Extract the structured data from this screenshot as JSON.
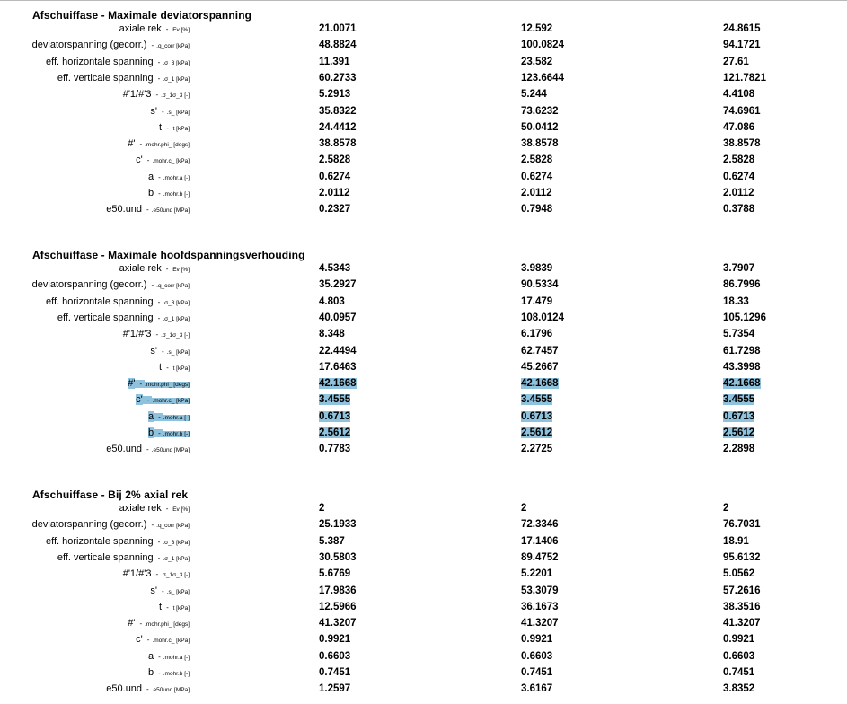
{
  "sections": [
    {
      "title": "Afschuiffase - Maximale deviatorspanning",
      "rows": [
        {
          "label": "axiale rek",
          "code": ".Ev [%]",
          "values": [
            "21.0071",
            "12.592",
            "24.8615"
          ]
        },
        {
          "label": "deviatorspanning (gecorr.)",
          "code": ".q_corr [kPa]",
          "values": [
            "48.8824",
            "100.0824",
            "94.1721"
          ]
        },
        {
          "label": "eff. horizontale spanning",
          "code": ".σ_3 [kPa]",
          "values": [
            "11.391",
            "23.582",
            "27.61"
          ]
        },
        {
          "label": "eff. verticale spanning",
          "code": ".σ_1 [kPa]",
          "values": [
            "60.2733",
            "123.6644",
            "121.7821"
          ]
        },
        {
          "label": "#'1/#'3",
          "code": ".σ_1σ_3 [-]",
          "values": [
            "5.2913",
            "5.244",
            "4.4108"
          ]
        },
        {
          "label": "s'",
          "code": ".s_ [kPa]",
          "values": [
            "35.8322",
            "73.6232",
            "74.6961"
          ]
        },
        {
          "label": "t",
          "code": ".t [kPa]",
          "values": [
            "24.4412",
            "50.0412",
            "47.086"
          ]
        },
        {
          "label": "#'",
          "code": ".mohr.phi_ [degs]",
          "values": [
            "38.8578",
            "38.8578",
            "38.8578"
          ]
        },
        {
          "label": "c'",
          "code": ".mohr.c_ [kPa]",
          "values": [
            "2.5828",
            "2.5828",
            "2.5828"
          ]
        },
        {
          "label": "a",
          "code": ".mohr.a [-]",
          "values": [
            "0.6274",
            "0.6274",
            "0.6274"
          ]
        },
        {
          "label": "b",
          "code": ".mohr.b [-]",
          "values": [
            "2.0112",
            "2.0112",
            "2.0112"
          ]
        },
        {
          "label": "e50.und",
          "code": ".e50und [MPa]",
          "values": [
            "0.2327",
            "0.7948",
            "0.3788"
          ]
        }
      ]
    },
    {
      "title": "Afschuiffase - Maximale hoofdspanningsverhouding",
      "rows": [
        {
          "label": "axiale rek",
          "code": ".Ev [%]",
          "values": [
            "4.5343",
            "3.9839",
            "3.7907"
          ]
        },
        {
          "label": "deviatorspanning (gecorr.)",
          "code": ".q_corr [kPa]",
          "values": [
            "35.2927",
            "90.5334",
            "86.7996"
          ]
        },
        {
          "label": "eff. horizontale spanning",
          "code": ".σ_3 [kPa]",
          "values": [
            "4.803",
            "17.479",
            "18.33"
          ]
        },
        {
          "label": "eff. verticale spanning",
          "code": ".σ_1 [kPa]",
          "values": [
            "40.0957",
            "108.0124",
            "105.1296"
          ]
        },
        {
          "label": "#'1/#'3",
          "code": ".σ_1σ_3 [-]",
          "values": [
            "8.348",
            "6.1796",
            "5.7354"
          ]
        },
        {
          "label": "s'",
          "code": ".s_ [kPa]",
          "values": [
            "22.4494",
            "62.7457",
            "61.7298"
          ]
        },
        {
          "label": "t",
          "code": ".t [kPa]",
          "values": [
            "17.6463",
            "45.2667",
            "43.3998"
          ]
        },
        {
          "label": "#'",
          "code": ".mohr.phi_ [degs]",
          "values": [
            "42.1668",
            "42.1668",
            "42.1668"
          ],
          "highlight": true
        },
        {
          "label": "c'",
          "code": ".mohr.c_ [kPa]",
          "values": [
            "3.4555",
            "3.4555",
            "3.4555"
          ],
          "highlight": true
        },
        {
          "label": "a",
          "code": ".mohr.a [-]",
          "values": [
            "0.6713",
            "0.6713",
            "0.6713"
          ],
          "highlight": true
        },
        {
          "label": "b",
          "code": ".mohr.b [-]",
          "values": [
            "2.5612",
            "2.5612",
            "2.5612"
          ],
          "highlight": true
        },
        {
          "label": "e50.und",
          "code": ".e50und [MPa]",
          "values": [
            "0.7783",
            "2.2725",
            "2.2898"
          ]
        }
      ]
    },
    {
      "title": "Afschuiffase - Bij 2% axial rek",
      "rows": [
        {
          "label": "axiale rek",
          "code": ".Ev [%]",
          "values": [
            "2",
            "2",
            "2"
          ]
        },
        {
          "label": "deviatorspanning (gecorr.)",
          "code": ".q_corr [kPa]",
          "values": [
            "25.1933",
            "72.3346",
            "76.7031"
          ]
        },
        {
          "label": "eff. horizontale spanning",
          "code": ".σ_3 [kPa]",
          "values": [
            "5.387",
            "17.1406",
            "18.91"
          ]
        },
        {
          "label": "eff. verticale spanning",
          "code": ".σ_1 [kPa]",
          "values": [
            "30.5803",
            "89.4752",
            "95.6132"
          ]
        },
        {
          "label": "#'1/#'3",
          "code": ".σ_1σ_3 [-]",
          "values": [
            "5.6769",
            "5.2201",
            "5.0562"
          ]
        },
        {
          "label": "s'",
          "code": ".s_ [kPa]",
          "values": [
            "17.9836",
            "53.3079",
            "57.2616"
          ]
        },
        {
          "label": "t",
          "code": ".t [kPa]",
          "values": [
            "12.5966",
            "36.1673",
            "38.3516"
          ]
        },
        {
          "label": "#'",
          "code": ".mohr.phi_ [degs]",
          "values": [
            "41.3207",
            "41.3207",
            "41.3207"
          ]
        },
        {
          "label": "c'",
          "code": ".mohr.c_ [kPa]",
          "values": [
            "0.9921",
            "0.9921",
            "0.9921"
          ]
        },
        {
          "label": "a",
          "code": ".mohr.a [-]",
          "values": [
            "0.6603",
            "0.6603",
            "0.6603"
          ]
        },
        {
          "label": "b",
          "code": ".mohr.b [-]",
          "values": [
            "0.7451",
            "0.7451",
            "0.7451"
          ]
        },
        {
          "label": "e50.und",
          "code": ".e50und [MPa]",
          "values": [
            "1.2597",
            "3.6167",
            "3.8352"
          ]
        }
      ]
    }
  ]
}
